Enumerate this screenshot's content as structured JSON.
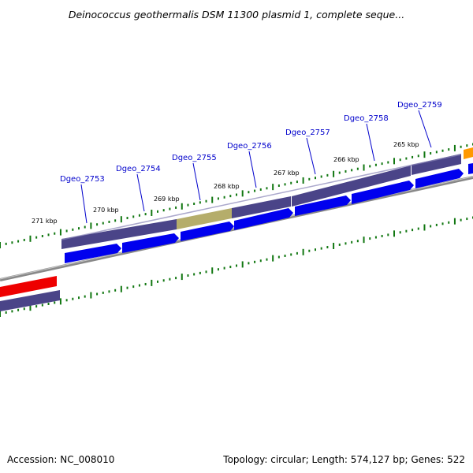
{
  "title": "Deinococcus geothermalis DSM 11300 plasmid 1, complete seque...",
  "footer": {
    "accession": "Accession: NC_008010",
    "summary": "Topology: circular; Length: 574,127 bp; Genes: 522"
  },
  "genes": [
    {
      "name": "Dgeo_2753"
    },
    {
      "name": "Dgeo_2754"
    },
    {
      "name": "Dgeo_2755"
    },
    {
      "name": "Dgeo_2756"
    },
    {
      "name": "Dgeo_2757"
    },
    {
      "name": "Dgeo_2758"
    },
    {
      "name": "Dgeo_2759"
    }
  ],
  "kbp_ticks": [
    "271 kbp",
    "270 kbp",
    "269 kbp",
    "268 kbp",
    "267 kbp",
    "266 kbp",
    "265 kbp"
  ],
  "colors": {
    "cds_forward": "#0000ee",
    "gene_track": "#4a4488",
    "highlight_gene": "#b5ad6b",
    "red_feature": "#ee0000",
    "orange_feature": "#ff9900",
    "backbone": "#888888",
    "tick": "#117711",
    "label_line": "#0000cc"
  }
}
